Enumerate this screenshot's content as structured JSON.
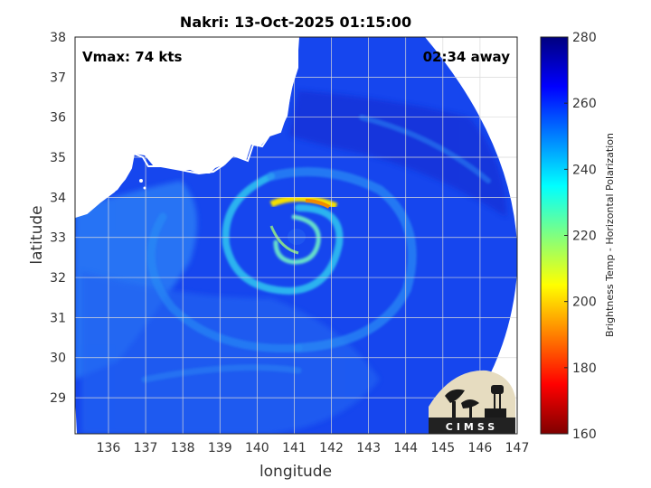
{
  "title": "Nakri: 13-Oct-2025 01:15:00",
  "vmax_label": "Vmax: 74 kts",
  "time_away_label": "02:34 away",
  "x_axis_label": "longitude",
  "y_axis_label": "latitude",
  "x_ticks": [
    "136",
    "137",
    "138",
    "139",
    "140",
    "141",
    "142",
    "143",
    "144",
    "145",
    "146",
    "147"
  ],
  "y_ticks": [
    "29",
    "30",
    "31",
    "32",
    "33",
    "34",
    "35",
    "36",
    "37",
    "38"
  ],
  "colorbar": {
    "label": "Brightness Temp - Horizontal Polarization",
    "ticks": [
      "160",
      "180",
      "200",
      "220",
      "240",
      "260",
      "280"
    ],
    "min": 160,
    "max": 280,
    "colors": [
      "#7f0000",
      "#ff0000",
      "#ff8000",
      "#ffff00",
      "#80ff80",
      "#00ffff",
      "#0080ff",
      "#0000ff",
      "#00007f"
    ]
  },
  "logo_text": "CIMSS",
  "map": {
    "lon_range": [
      135.1,
      147
    ],
    "lat_range": [
      28.1,
      38
    ],
    "storm_center": [
      141.1,
      32.9
    ],
    "background_color": "#1646ee",
    "coast_color": "#ffffff"
  }
}
